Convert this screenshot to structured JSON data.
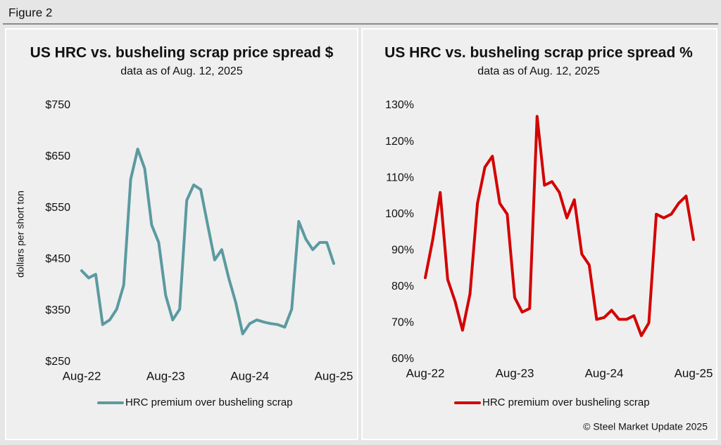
{
  "figure_label": "Figure 2",
  "source": "© Steel Market Update 2025",
  "chart_data": [
    {
      "type": "line",
      "title": "US HRC vs. busheling scrap price spread $",
      "subtitle": "data as of Aug. 12, 2025",
      "y_label": "dollars per short ton",
      "categories": [
        "Aug-22",
        null,
        null,
        null,
        null,
        null,
        null,
        null,
        null,
        null,
        null,
        null,
        "Aug-23",
        null,
        null,
        null,
        null,
        null,
        null,
        null,
        null,
        null,
        null,
        null,
        "Aug-24",
        null,
        null,
        null,
        null,
        null,
        null,
        null,
        null,
        null,
        null,
        null,
        "Aug-25"
      ],
      "series": [
        {
          "name": "HRC premium over busheling scrap",
          "color": "#5b9aa0",
          "values": [
            428,
            414,
            421,
            323,
            332,
            353,
            400,
            606,
            665,
            627,
            517,
            483,
            380,
            332,
            353,
            565,
            595,
            586,
            517,
            449,
            469,
            414,
            366,
            305,
            325,
            332,
            328,
            325,
            323,
            318,
            353,
            524,
            490,
            469,
            483,
            483,
            442
          ]
        }
      ],
      "ylim": [
        250,
        750
      ],
      "yticks": [
        {
          "value": 250,
          "label": "$250"
        },
        {
          "value": 350,
          "label": "$350"
        },
        {
          "value": 450,
          "label": "$450"
        },
        {
          "value": 550,
          "label": "$550"
        },
        {
          "value": 650,
          "label": "$650"
        },
        {
          "value": 750,
          "label": "$750"
        }
      ]
    },
    {
      "type": "line",
      "title": "US HRC vs. busheling scrap price spread %",
      "subtitle": "data as of Aug. 12, 2025",
      "categories": [
        "Aug-22",
        null,
        null,
        null,
        null,
        null,
        null,
        null,
        null,
        null,
        null,
        null,
        "Aug-23",
        null,
        null,
        null,
        null,
        null,
        null,
        null,
        null,
        null,
        null,
        null,
        "Aug-24",
        null,
        null,
        null,
        null,
        null,
        null,
        null,
        null,
        null,
        null,
        null,
        "Aug-25"
      ],
      "series": [
        {
          "name": "HRC premium over busheling scrap",
          "color": "#d40000",
          "values": [
            82.5,
            93,
            106,
            82,
            76,
            68,
            78,
            103,
            113,
            116,
            103,
            100,
            77,
            73,
            74,
            127,
            108,
            109,
            106,
            99,
            104,
            89,
            86,
            71,
            71.5,
            73.5,
            71,
            71,
            72,
            66.5,
            70,
            100,
            99,
            100,
            103,
            105,
            93
          ]
        }
      ],
      "ylim": [
        60,
        130
      ],
      "yticks": [
        {
          "value": 60,
          "label": "60%"
        },
        {
          "value": 70,
          "label": "70%"
        },
        {
          "value": 80,
          "label": "80%"
        },
        {
          "value": 90,
          "label": "90%"
        },
        {
          "value": 100,
          "label": "100%"
        },
        {
          "value": 110,
          "label": "110%"
        },
        {
          "value": 120,
          "label": "120%"
        },
        {
          "value": 130,
          "label": "130%"
        }
      ]
    }
  ]
}
